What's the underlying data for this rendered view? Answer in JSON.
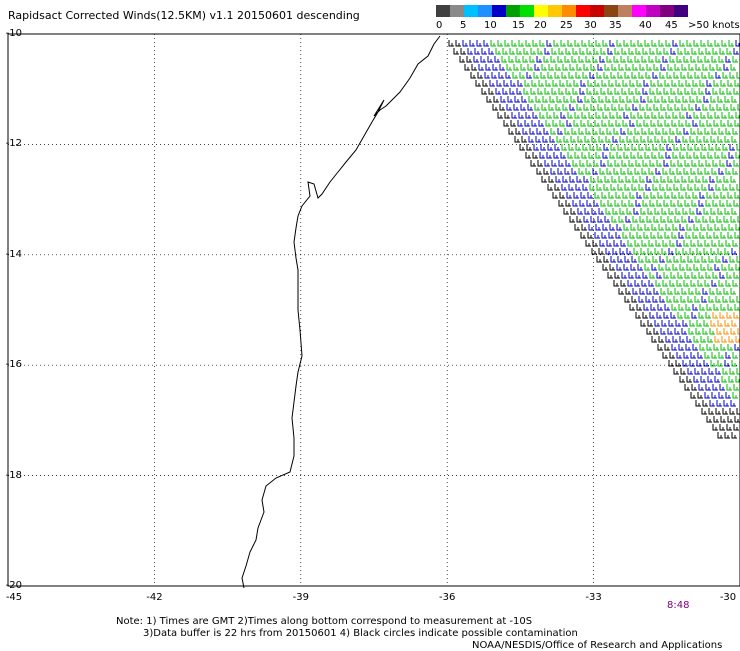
{
  "title": "Rapidsact Corrected Winds(12.5KM) v1.1 20150601 descending",
  "colorbar": {
    "labels": [
      "0",
      "5",
      "10",
      "15",
      "20",
      "25",
      "30",
      "35",
      "40",
      "45",
      ">50 knots"
    ],
    "colors": [
      "#404040",
      "#8a8a8a",
      "#00bfff",
      "#1e90ff",
      "#0000c8",
      "#00a000",
      "#00e000",
      "#ffff00",
      "#ffc800",
      "#ff8c00",
      "#ff0000",
      "#c80000",
      "#8b4513",
      "#c08060",
      "#ff00ff",
      "#c000c0",
      "#800080",
      "#400080"
    ]
  },
  "map": {
    "lat_labels": [
      "-10",
      "-12",
      "-14",
      "-16",
      "-18",
      "-20"
    ],
    "lon_labels": [
      "-45",
      "-42",
      "-39",
      "-36",
      "-33",
      "-30"
    ],
    "lat_range": [
      -20,
      -10
    ],
    "lon_range": [
      -45,
      -30
    ],
    "grid": "dotted"
  },
  "timestamp": "8:48",
  "notes": {
    "line1": "Note: 1) Times are GMT 2)Times along bottom correspond to measurement at -10S",
    "line2": "3)Data buffer is 22 hrs from 20150601 4) Black circles indicate possible contamination",
    "line3": "NOAA/NESDIS/Office of Research and Applications"
  },
  "colors": {
    "coast": "#000000",
    "grid": "#000000",
    "wind_dark": "#000000",
    "wind_blue": "#0000c8",
    "wind_green": "#00c000",
    "wind_yellow": "#ffc800",
    "wind_orange": "#ff8c00",
    "timestamp": "#800080"
  }
}
